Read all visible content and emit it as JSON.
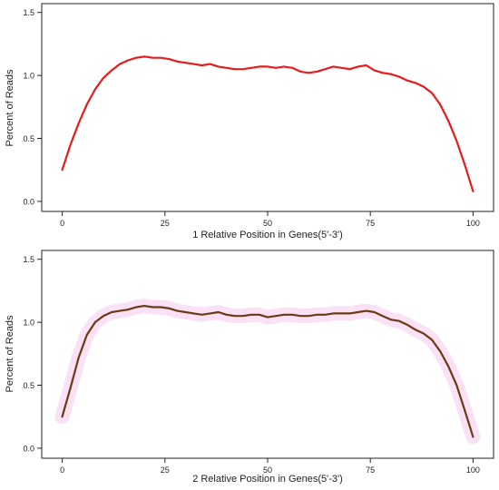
{
  "chart_data": [
    {
      "type": "line",
      "xlabel": "1 Relative Position in Genes(5'-3')",
      "ylabel": "Percent of Reads",
      "xlim": [
        -5,
        105
      ],
      "ylim": [
        -0.08,
        1.57
      ],
      "xticks": [
        0,
        25,
        50,
        75,
        100
      ],
      "yticks": [
        0.0,
        0.5,
        1.0,
        1.5
      ],
      "xtick_labels": [
        "0",
        "25",
        "50",
        "75",
        "100"
      ],
      "ytick_labels": [
        "0.0",
        "0.5",
        "1.0",
        "1.5"
      ],
      "grid": false,
      "colors": {
        "line": "#e61b1b"
      },
      "series": [
        {
          "x": [
            0,
            2,
            4,
            6,
            8,
            10,
            12,
            14,
            16,
            18,
            20,
            22,
            24,
            26,
            28,
            30,
            32,
            34,
            36,
            38,
            40,
            42,
            44,
            46,
            48,
            50,
            52,
            54,
            56,
            58,
            60,
            62,
            64,
            66,
            68,
            70,
            72,
            74,
            76,
            78,
            80,
            82,
            84,
            86,
            88,
            90,
            92,
            94,
            96,
            98,
            100
          ],
          "y": [
            0.25,
            0.45,
            0.62,
            0.77,
            0.89,
            0.98,
            1.04,
            1.09,
            1.12,
            1.14,
            1.15,
            1.14,
            1.14,
            1.13,
            1.11,
            1.1,
            1.09,
            1.08,
            1.09,
            1.07,
            1.06,
            1.05,
            1.05,
            1.06,
            1.07,
            1.07,
            1.06,
            1.07,
            1.06,
            1.03,
            1.02,
            1.03,
            1.05,
            1.07,
            1.06,
            1.05,
            1.07,
            1.08,
            1.04,
            1.02,
            1.01,
            0.99,
            0.96,
            0.94,
            0.91,
            0.86,
            0.77,
            0.64,
            0.48,
            0.29,
            0.08
          ]
        }
      ]
    },
    {
      "type": "line",
      "xlabel": "2 Relative Position in Genes(5'-3')",
      "ylabel": "Percent of Reads",
      "xlim": [
        -5,
        105
      ],
      "ylim": [
        -0.08,
        1.57
      ],
      "xticks": [
        0,
        25,
        50,
        75,
        100
      ],
      "yticks": [
        0.0,
        0.5,
        1.0,
        1.5
      ],
      "xtick_labels": [
        "0",
        "25",
        "50",
        "75",
        "100"
      ],
      "ytick_labels": [
        "0.0",
        "0.5",
        "1.0",
        "1.5"
      ],
      "grid": false,
      "colors": {
        "line": "#6b3a12",
        "band": "#fadcf5"
      },
      "series": [
        {
          "x": [
            0,
            2,
            4,
            6,
            8,
            10,
            12,
            14,
            16,
            18,
            20,
            22,
            24,
            26,
            28,
            30,
            32,
            34,
            36,
            38,
            40,
            42,
            44,
            46,
            48,
            50,
            52,
            54,
            56,
            58,
            60,
            62,
            64,
            66,
            68,
            70,
            72,
            74,
            76,
            78,
            80,
            82,
            84,
            86,
            88,
            90,
            92,
            94,
            96,
            98,
            100
          ],
          "y": [
            0.25,
            0.48,
            0.72,
            0.9,
            1.0,
            1.05,
            1.08,
            1.09,
            1.1,
            1.12,
            1.13,
            1.12,
            1.12,
            1.11,
            1.09,
            1.08,
            1.07,
            1.06,
            1.07,
            1.08,
            1.06,
            1.05,
            1.05,
            1.06,
            1.06,
            1.04,
            1.05,
            1.06,
            1.06,
            1.05,
            1.05,
            1.06,
            1.06,
            1.07,
            1.07,
            1.07,
            1.08,
            1.09,
            1.08,
            1.05,
            1.02,
            1.01,
            0.98,
            0.94,
            0.91,
            0.86,
            0.77,
            0.65,
            0.5,
            0.3,
            0.09
          ]
        }
      ]
    }
  ]
}
